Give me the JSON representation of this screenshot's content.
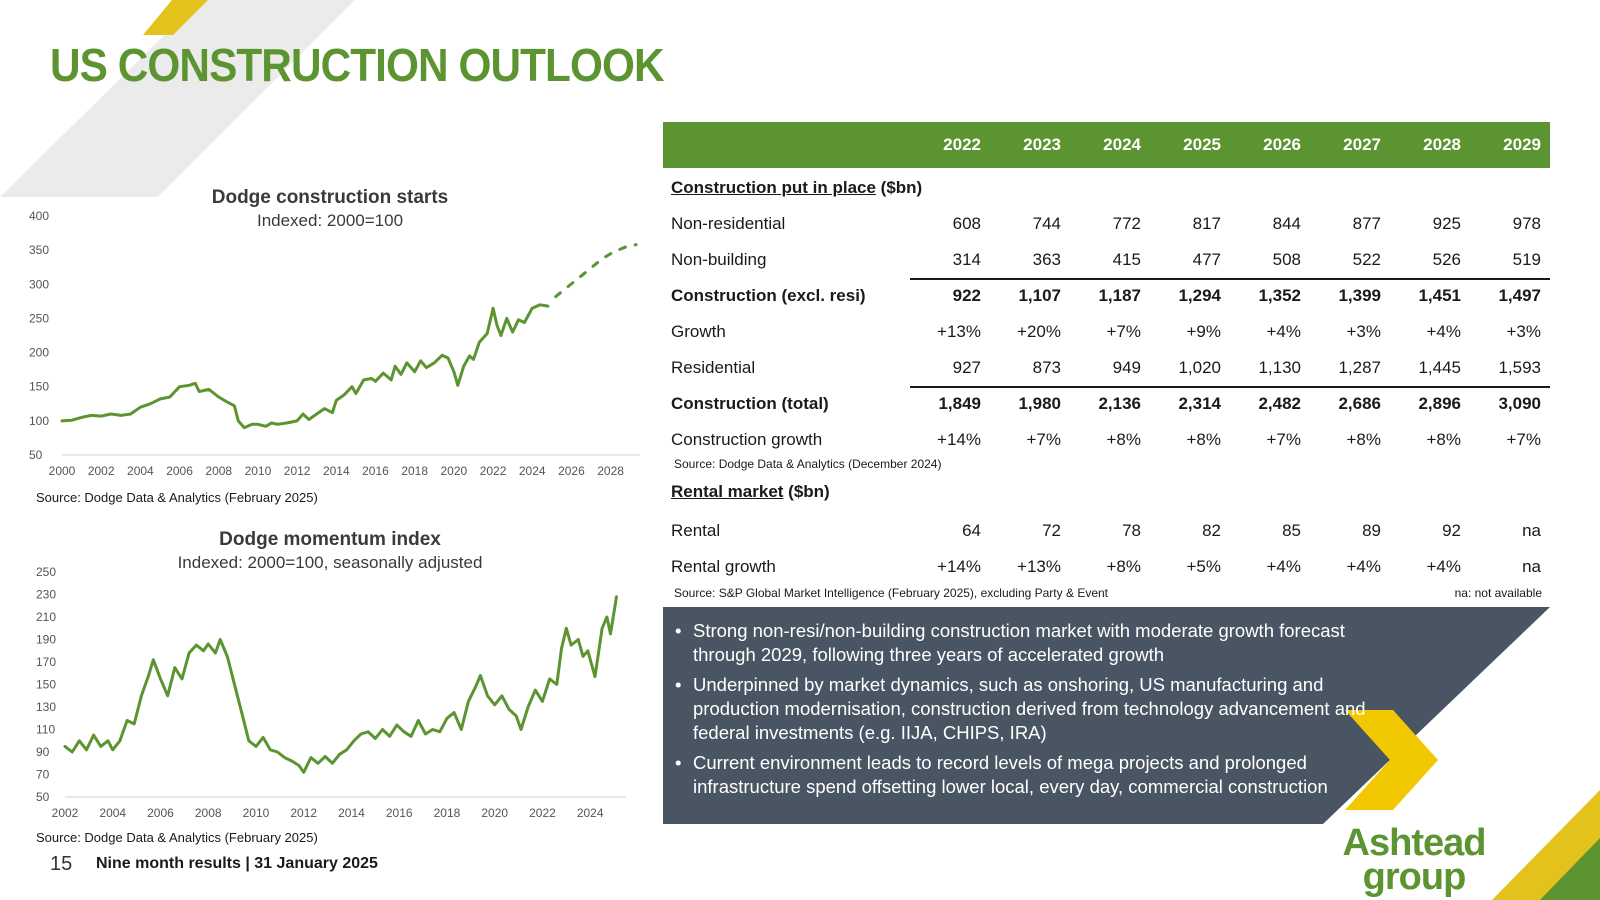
{
  "page": {
    "title": "US CONSTRUCTION OUTLOOK",
    "page_number": "15",
    "footer": "Nine month results | 31 January 2025",
    "logo_line1": "Ashtead",
    "logo_line2": "group"
  },
  "colors": {
    "brand_green": "#5b9431",
    "panel_grey": "#4a5563",
    "accent_yellow": "#f2c800"
  },
  "chart_data": [
    {
      "type": "line",
      "title": "Dodge construction starts",
      "subtitle": "Indexed: 2000=100",
      "source": "Source: Dodge Data & Analytics (February 2025)",
      "xlim": [
        2000,
        2029.5
      ],
      "ylim": [
        50,
        400
      ],
      "yticks": [
        "400",
        "350",
        "300",
        "250",
        "200",
        "150",
        "100",
        "50"
      ],
      "xticks": [
        "2000",
        "2002",
        "2004",
        "2006",
        "2008",
        "2010",
        "2012",
        "2014",
        "2016",
        "2018",
        "2020",
        "2022",
        "2024",
        "2026",
        "2028"
      ],
      "series": [
        {
          "name": "Actual",
          "style": "solid",
          "points": [
            [
              2000,
              100
            ],
            [
              2000.5,
              101
            ],
            [
              2001,
              105
            ],
            [
              2001.5,
              108
            ],
            [
              2002,
              107
            ],
            [
              2002.5,
              110
            ],
            [
              2003,
              108
            ],
            [
              2003.5,
              110
            ],
            [
              2004,
              120
            ],
            [
              2004.5,
              125
            ],
            [
              2005,
              132
            ],
            [
              2005.5,
              135
            ],
            [
              2006,
              150
            ],
            [
              2006.5,
              152
            ],
            [
              2006.8,
              155
            ],
            [
              2007,
              143
            ],
            [
              2007.5,
              146
            ],
            [
              2008,
              135
            ],
            [
              2008.4,
              128
            ],
            [
              2008.8,
              122
            ],
            [
              2009,
              100
            ],
            [
              2009.3,
              90
            ],
            [
              2009.7,
              95
            ],
            [
              2010,
              95
            ],
            [
              2010.4,
              92
            ],
            [
              2010.7,
              97
            ],
            [
              2011,
              95
            ],
            [
              2011.5,
              97
            ],
            [
              2012,
              100
            ],
            [
              2012.3,
              110
            ],
            [
              2012.6,
              102
            ],
            [
              2013,
              110
            ],
            [
              2013.4,
              118
            ],
            [
              2013.8,
              112
            ],
            [
              2014,
              130
            ],
            [
              2014.4,
              138
            ],
            [
              2014.8,
              150
            ],
            [
              2015,
              140
            ],
            [
              2015.4,
              160
            ],
            [
              2015.8,
              162
            ],
            [
              2016,
              158
            ],
            [
              2016.4,
              170
            ],
            [
              2016.8,
              160
            ],
            [
              2017,
              180
            ],
            [
              2017.3,
              168
            ],
            [
              2017.6,
              185
            ],
            [
              2018,
              172
            ],
            [
              2018.3,
              188
            ],
            [
              2018.6,
              178
            ],
            [
              2019,
              185
            ],
            [
              2019.4,
              196
            ],
            [
              2019.7,
              192
            ],
            [
              2020,
              172
            ],
            [
              2020.2,
              152
            ],
            [
              2020.5,
              180
            ],
            [
              2020.8,
              195
            ],
            [
              2021,
              190
            ],
            [
              2021.3,
              215
            ],
            [
              2021.7,
              228
            ],
            [
              2022,
              265
            ],
            [
              2022.2,
              240
            ],
            [
              2022.4,
              225
            ],
            [
              2022.7,
              250
            ],
            [
              2023,
              230
            ],
            [
              2023.3,
              248
            ],
            [
              2023.6,
              244
            ],
            [
              2024,
              265
            ],
            [
              2024.4,
              270
            ],
            [
              2024.8,
              268
            ]
          ]
        },
        {
          "name": "Forecast",
          "style": "dashed",
          "points": [
            [
              2025.2,
              282
            ],
            [
              2025.8,
              296
            ],
            [
              2026.4,
              310
            ],
            [
              2027,
              324
            ],
            [
              2027.6,
              338
            ],
            [
              2028.2,
              348
            ],
            [
              2028.8,
              355
            ],
            [
              2029.3,
              358
            ]
          ]
        }
      ]
    },
    {
      "type": "line",
      "title": "Dodge momentum index",
      "subtitle": "Indexed: 2000=100, seasonally adjusted",
      "source": "Source: Dodge Data & Analytics (February 2025)",
      "xlim": [
        2002,
        2025.5
      ],
      "ylim": [
        50,
        250
      ],
      "yticks": [
        "250",
        "230",
        "210",
        "190",
        "170",
        "150",
        "130",
        "110",
        "90",
        "70",
        "50"
      ],
      "xticks": [
        "2002",
        "2004",
        "2006",
        "2008",
        "2010",
        "2012",
        "2014",
        "2016",
        "2018",
        "2020",
        "2022",
        "2024"
      ],
      "series": [
        {
          "name": "Index",
          "style": "solid",
          "points": [
            [
              2002,
              95
            ],
            [
              2002.3,
              90
            ],
            [
              2002.6,
              100
            ],
            [
              2002.9,
              92
            ],
            [
              2003.2,
              105
            ],
            [
              2003.5,
              95
            ],
            [
              2003.8,
              100
            ],
            [
              2004,
              92
            ],
            [
              2004.3,
              100
            ],
            [
              2004.6,
              118
            ],
            [
              2004.9,
              115
            ],
            [
              2005.2,
              140
            ],
            [
              2005.5,
              158
            ],
            [
              2005.7,
              172
            ],
            [
              2006,
              155
            ],
            [
              2006.3,
              140
            ],
            [
              2006.6,
              165
            ],
            [
              2006.9,
              155
            ],
            [
              2007.2,
              178
            ],
            [
              2007.5,
              185
            ],
            [
              2007.8,
              180
            ],
            [
              2008,
              186
            ],
            [
              2008.3,
              178
            ],
            [
              2008.5,
              190
            ],
            [
              2008.8,
              175
            ],
            [
              2009.1,
              150
            ],
            [
              2009.4,
              125
            ],
            [
              2009.7,
              100
            ],
            [
              2010,
              95
            ],
            [
              2010.3,
              103
            ],
            [
              2010.6,
              92
            ],
            [
              2010.9,
              90
            ],
            [
              2011.2,
              85
            ],
            [
              2011.5,
              82
            ],
            [
              2011.8,
              78
            ],
            [
              2012,
              72
            ],
            [
              2012.3,
              85
            ],
            [
              2012.6,
              80
            ],
            [
              2012.9,
              86
            ],
            [
              2013.2,
              80
            ],
            [
              2013.5,
              88
            ],
            [
              2013.8,
              92
            ],
            [
              2014.1,
              100
            ],
            [
              2014.4,
              106
            ],
            [
              2014.7,
              108
            ],
            [
              2015,
              102
            ],
            [
              2015.3,
              110
            ],
            [
              2015.6,
              104
            ],
            [
              2015.9,
              114
            ],
            [
              2016.2,
              108
            ],
            [
              2016.5,
              104
            ],
            [
              2016.8,
              118
            ],
            [
              2017.1,
              106
            ],
            [
              2017.4,
              110
            ],
            [
              2017.7,
              108
            ],
            [
              2018,
              120
            ],
            [
              2018.3,
              125
            ],
            [
              2018.6,
              110
            ],
            [
              2018.9,
              135
            ],
            [
              2019.2,
              148
            ],
            [
              2019.4,
              158
            ],
            [
              2019.7,
              140
            ],
            [
              2020,
              132
            ],
            [
              2020.3,
              140
            ],
            [
              2020.6,
              128
            ],
            [
              2020.9,
              122
            ],
            [
              2021.1,
              110
            ],
            [
              2021.4,
              130
            ],
            [
              2021.7,
              145
            ],
            [
              2022,
              135
            ],
            [
              2022.3,
              155
            ],
            [
              2022.6,
              150
            ],
            [
              2022.8,
              182
            ],
            [
              2023,
              200
            ],
            [
              2023.2,
              185
            ],
            [
              2023.5,
              190
            ],
            [
              2023.7,
              175
            ],
            [
              2023.9,
              180
            ],
            [
              2024.2,
              157
            ],
            [
              2024.5,
              200
            ],
            [
              2024.7,
              210
            ],
            [
              2024.85,
              195
            ],
            [
              2025.1,
              228
            ]
          ]
        }
      ]
    }
  ],
  "table": {
    "years": [
      "2022",
      "2023",
      "2024",
      "2025",
      "2026",
      "2027",
      "2028",
      "2029"
    ],
    "section1_title": "Construction put in place",
    "section1_unit": " ($bn)",
    "rows1": [
      {
        "label": "Non-residential",
        "values": [
          "608",
          "744",
          "772",
          "817",
          "844",
          "877",
          "925",
          "978"
        ]
      },
      {
        "label": "Non-building",
        "values": [
          "314",
          "363",
          "415",
          "477",
          "508",
          "522",
          "526",
          "519"
        ]
      },
      {
        "label": "Construction (excl. resi)",
        "values": [
          "922",
          "1,107",
          "1,187",
          "1,294",
          "1,352",
          "1,399",
          "1,451",
          "1,497"
        ]
      },
      {
        "label": "Growth",
        "values": [
          "+13%",
          "+20%",
          "+7%",
          "+9%",
          "+4%",
          "+3%",
          "+4%",
          "+3%"
        ]
      },
      {
        "label": "Residential",
        "values": [
          "927",
          "873",
          "949",
          "1,020",
          "1,130",
          "1,287",
          "1,445",
          "1,593"
        ]
      },
      {
        "label": "Construction (total)",
        "values": [
          "1,849",
          "1,980",
          "2,136",
          "2,314",
          "2,482",
          "2,686",
          "2,896",
          "3,090"
        ]
      },
      {
        "label": "Construction growth",
        "values": [
          "+14%",
          "+7%",
          "+8%",
          "+8%",
          "+7%",
          "+8%",
          "+8%",
          "+7%"
        ]
      }
    ],
    "source1": "Source: Dodge Data & Analytics (December 2024)",
    "section2_title": "Rental market",
    "section2_unit": " ($bn)",
    "rows2": [
      {
        "label": "Rental",
        "values": [
          "64",
          "72",
          "78",
          "82",
          "85",
          "89",
          "92",
          "na"
        ]
      },
      {
        "label": "Rental growth",
        "values": [
          "+14%",
          "+13%",
          "+8%",
          "+5%",
          "+4%",
          "+4%",
          "+4%",
          "na"
        ]
      }
    ],
    "source2": "Source: S&P Global Market Intelligence (February 2025), excluding Party & Event",
    "note2": "na: not available"
  },
  "bullets": [
    "Strong non-resi/non-building construction market with moderate growth forecast through 2029, following three years of accelerated growth",
    "Underpinned by market dynamics, such as onshoring, US manufacturing and production modernisation, construction derived from technology advancement and federal investments (e.g. IIJA, CHIPS, IRA)",
    "Current environment leads to record levels of mega projects and prolonged infrastructure spend offsetting lower local, every day, commercial construction"
  ]
}
